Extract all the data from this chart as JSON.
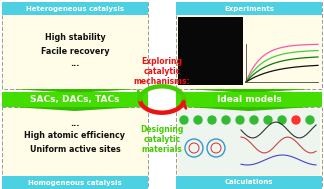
{
  "bg_color": "#ffffff",
  "cyan_color": "#4dd0e1",
  "yellow_bg": "#fffde7",
  "red_col": "#ee1111",
  "green_col": "#44cc00",
  "bright_green_box": "#44dd00",
  "dark_green_tri": "#33bb00",
  "top_left_title": "Heterogeneous catalysis",
  "top_left_body": [
    "High stability",
    "Facile recovery",
    "..."
  ],
  "bottom_left_title": "Homogeneous catalysis",
  "bottom_left_body": [
    "...",
    "High atomic efficiency",
    "Uniform active sites"
  ],
  "top_right_title": "Experiments",
  "bottom_right_title": "Calculations",
  "center_left_label": "SACs, DACs, TACs",
  "center_right_label": "Ideal models",
  "top_center_text": [
    "Exploring",
    "catalytic",
    "mechanisms:"
  ],
  "bottom_center_text": [
    "Designing",
    "catalytic",
    "materials"
  ],
  "fig_width": 3.24,
  "fig_height": 1.89,
  "dpi": 100
}
